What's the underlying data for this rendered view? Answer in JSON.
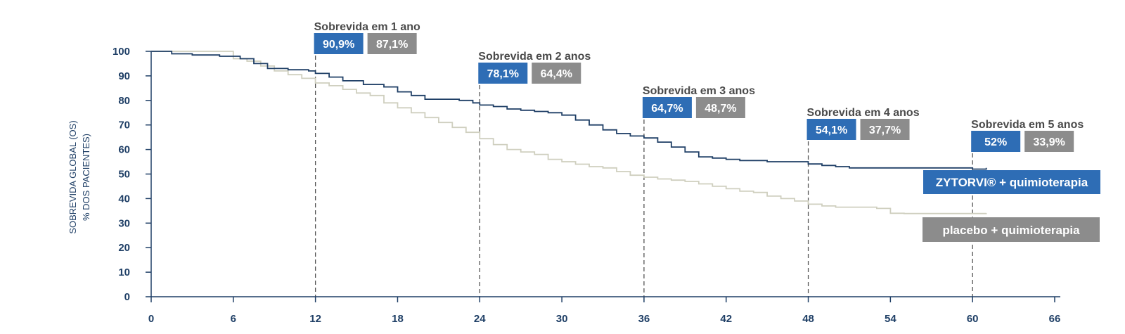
{
  "chart_data": {
    "type": "line",
    "ylabel": [
      "SOBREVIDA GLOBAL (OS)",
      "% DOS PACIENTES)"
    ],
    "xlim": [
      0,
      66
    ],
    "ylim": [
      0,
      100
    ],
    "x_ticks": [
      0,
      6,
      12,
      18,
      24,
      30,
      36,
      42,
      48,
      54,
      60,
      66
    ],
    "y_ticks": [
      0,
      10,
      20,
      30,
      40,
      50,
      60,
      70,
      80,
      90,
      100
    ],
    "colors": {
      "zytorvi": "#1f3f66",
      "placebo": "#cfcfbf",
      "blue_box": "#2e6db5",
      "gray_box": "#8c8c8c"
    },
    "series": [
      {
        "name": "ZYTORVI® + quimioterapia",
        "key": "zytorvi",
        "points": [
          [
            0,
            100
          ],
          [
            1,
            100
          ],
          [
            1.5,
            99
          ],
          [
            3,
            98.5
          ],
          [
            5,
            98
          ],
          [
            6.5,
            97
          ],
          [
            7.5,
            95
          ],
          [
            8.5,
            93
          ],
          [
            10,
            92.5
          ],
          [
            11.5,
            92
          ],
          [
            12,
            91
          ],
          [
            13,
            89.5
          ],
          [
            14,
            88
          ],
          [
            15.5,
            86.5
          ],
          [
            17,
            85.5
          ],
          [
            18,
            83.5
          ],
          [
            19,
            82
          ],
          [
            20,
            80.5
          ],
          [
            21,
            80.5
          ],
          [
            22.5,
            80
          ],
          [
            23.5,
            79
          ],
          [
            24,
            78.1
          ],
          [
            25,
            77.5
          ],
          [
            26,
            76.5
          ],
          [
            27,
            76
          ],
          [
            28,
            75.5
          ],
          [
            29,
            75
          ],
          [
            30,
            74
          ],
          [
            31,
            72
          ],
          [
            32,
            70
          ],
          [
            33,
            68
          ],
          [
            34,
            66.5
          ],
          [
            35,
            65.5
          ],
          [
            36,
            64.7
          ],
          [
            37,
            63
          ],
          [
            38,
            61
          ],
          [
            39,
            59
          ],
          [
            40,
            57
          ],
          [
            41,
            56.5
          ],
          [
            42,
            56
          ],
          [
            43,
            55.5
          ],
          [
            45,
            55
          ],
          [
            47,
            55
          ],
          [
            48,
            54.1
          ],
          [
            49,
            53.5
          ],
          [
            50,
            53
          ],
          [
            51,
            52.5
          ],
          [
            55,
            52.5
          ],
          [
            58,
            52.5
          ],
          [
            60,
            52
          ],
          [
            61,
            52.5
          ]
        ]
      },
      {
        "name": "placebo + quimioterapia",
        "key": "placebo",
        "points": [
          [
            0,
            100
          ],
          [
            2,
            100
          ],
          [
            5,
            100
          ],
          [
            6,
            97
          ],
          [
            7,
            96
          ],
          [
            8,
            94
          ],
          [
            9,
            92
          ],
          [
            10,
            90.5
          ],
          [
            11,
            89
          ],
          [
            12,
            87.1
          ],
          [
            13,
            86
          ],
          [
            14,
            84.5
          ],
          [
            15,
            83
          ],
          [
            16,
            82
          ],
          [
            17,
            79
          ],
          [
            18,
            77
          ],
          [
            19,
            75
          ],
          [
            20,
            73
          ],
          [
            21,
            71
          ],
          [
            22,
            69
          ],
          [
            23,
            67
          ],
          [
            24,
            64.4
          ],
          [
            25,
            62
          ],
          [
            26,
            60
          ],
          [
            27,
            59
          ],
          [
            28,
            58
          ],
          [
            29,
            56
          ],
          [
            30,
            55
          ],
          [
            31,
            54
          ],
          [
            32,
            53
          ],
          [
            33,
            52.5
          ],
          [
            34,
            51
          ],
          [
            35,
            49.5
          ],
          [
            36,
            48.7
          ],
          [
            37,
            48
          ],
          [
            38,
            47.5
          ],
          [
            39,
            47
          ],
          [
            40,
            46
          ],
          [
            41,
            45
          ],
          [
            42,
            44
          ],
          [
            43,
            43
          ],
          [
            44,
            42.5
          ],
          [
            45,
            41
          ],
          [
            46,
            40
          ],
          [
            47,
            39
          ],
          [
            48,
            37.7
          ],
          [
            49,
            37
          ],
          [
            50,
            36.5
          ],
          [
            51,
            36.5
          ],
          [
            52,
            36.5
          ],
          [
            53,
            36
          ],
          [
            54,
            34
          ],
          [
            55,
            33.9
          ],
          [
            58,
            33.9
          ],
          [
            60,
            33.9
          ],
          [
            61,
            34
          ]
        ]
      }
    ],
    "milestones": [
      {
        "title": "Sobrevida em 1 ano",
        "x": 12,
        "zytorvi": "90,9%",
        "placebo": "87,1%"
      },
      {
        "title": "Sobrevida em 2 anos",
        "x": 24,
        "zytorvi": "78,1%",
        "placebo": "64,4%"
      },
      {
        "title": "Sobrevida em 3 anos",
        "x": 36,
        "zytorvi": "64,7%",
        "placebo": "48,7%"
      },
      {
        "title": "Sobrevida em 4 anos",
        "x": 48,
        "zytorvi": "54,1%",
        "placebo": "37,7%"
      },
      {
        "title": "Sobrevida em 5 anos",
        "x": 60,
        "zytorvi": "52%",
        "placebo": "33,9%"
      }
    ],
    "legend": {
      "zytorvi": "ZYTORVI® + quimioterapia",
      "placebo": "placebo + quimioterapia"
    }
  }
}
